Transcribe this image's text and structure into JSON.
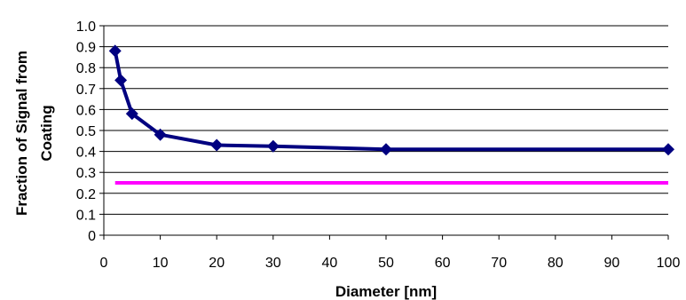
{
  "chart_data": {
    "type": "line",
    "title": "",
    "xlabel": "Diameter [nm]",
    "ylabel_lines": [
      "Fraction of Signal from",
      "Coating"
    ],
    "xlim": [
      0,
      100
    ],
    "ylim": [
      0,
      1.0
    ],
    "x_ticks": [
      "0",
      "10",
      "20",
      "30",
      "40",
      "50",
      "60",
      "70",
      "80",
      "90",
      "100"
    ],
    "y_ticks": [
      "0",
      "0.1",
      "0.2",
      "0.3",
      "0.4",
      "0.5",
      "0.6",
      "0.7",
      "0.8",
      "0.9",
      "1.0"
    ],
    "grid": "horizontal",
    "series": [
      {
        "color": "#000080",
        "marker": "diamond",
        "x": [
          2,
          3,
          5,
          10,
          20,
          30,
          50,
          100
        ],
        "y": [
          0.88,
          0.74,
          0.58,
          0.48,
          0.43,
          0.425,
          0.41,
          0.41
        ]
      },
      {
        "color": "#ff00ff",
        "marker": "none",
        "x": [
          2,
          100
        ],
        "y": [
          0.25,
          0.25
        ]
      }
    ]
  }
}
